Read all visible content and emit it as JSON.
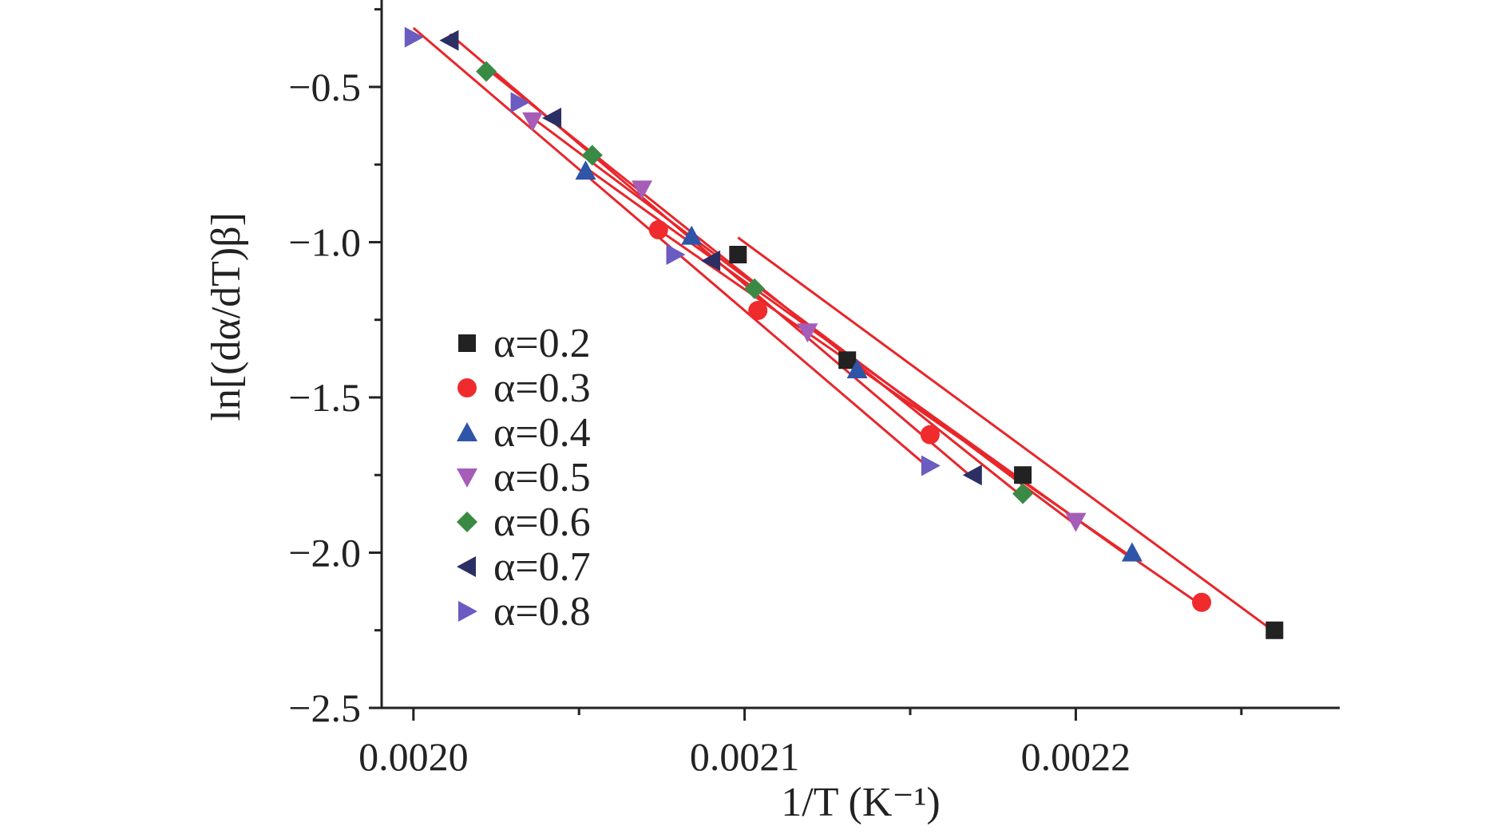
{
  "chart_data": {
    "type": "scatter",
    "xlabel": "1/T (K⁻¹)",
    "ylabel": "ln[(dα/dT)β]",
    "xlim": [
      0.0019904,
      0.0022797
    ],
    "ylim": [
      -2.5,
      -0.22
    ],
    "x_ticks": [
      0.002,
      0.0021,
      0.0022
    ],
    "x_tick_labels": [
      "0.0020",
      "0.0021",
      "0.0022"
    ],
    "y_ticks": [
      -0.5,
      -1.0,
      -1.5,
      -2.0,
      -2.5
    ],
    "y_tick_labels": [
      "−0.5",
      "−1.0",
      "−1.5",
      "−2.0",
      "−2.5"
    ],
    "grid": false,
    "legend_position": "center-left",
    "series": [
      {
        "name": "α=0.2",
        "marker": "square",
        "color": "#222222",
        "x": [
          0.002098,
          0.002131,
          0.002184,
          0.00226
        ],
        "y": [
          -1.04,
          -1.38,
          -1.75,
          -2.25
        ],
        "fit": {
          "x": [
            0.002098,
            0.00226
          ],
          "y": [
            -0.985,
            -2.255
          ]
        }
      },
      {
        "name": "α=0.3",
        "marker": "circle",
        "color": "#ef2b2d",
        "x": [
          0.002074,
          0.002104,
          0.002156,
          0.002238
        ],
        "y": [
          -0.96,
          -1.22,
          -1.62,
          -2.16
        ],
        "fit": {
          "x": [
            0.002074,
            0.002238
          ],
          "y": [
            -0.96,
            -2.17
          ]
        }
      },
      {
        "name": "α=0.4",
        "marker": "triangle-up",
        "color": "#2f55a8",
        "x": [
          0.002052,
          0.002084,
          0.002134,
          0.002217
        ],
        "y": [
          -0.77,
          -0.98,
          -1.41,
          -2.0
        ],
        "fit": {
          "x": [
            0.002052,
            0.002217
          ],
          "y": [
            -0.76,
            -2.02
          ]
        }
      },
      {
        "name": "α=0.5",
        "marker": "triangle-down",
        "color": "#a55db8",
        "x": [
          0.002036,
          0.002069,
          0.002119,
          0.0022
        ],
        "y": [
          -0.61,
          -0.83,
          -1.29,
          -1.9
        ],
        "fit": {
          "x": [
            0.002036,
            0.0022
          ],
          "y": [
            -0.6,
            -1.91
          ]
        }
      },
      {
        "name": "α=0.6",
        "marker": "diamond",
        "color": "#3a8a45",
        "x": [
          0.002022,
          0.002054,
          0.002103,
          0.002184
        ],
        "y": [
          -0.45,
          -0.72,
          -1.15,
          -1.81
        ],
        "fit": {
          "x": [
            0.002022,
            0.002184
          ],
          "y": [
            -0.44,
            -1.82
          ]
        }
      },
      {
        "name": "α=0.7",
        "marker": "triangle-left",
        "color": "#2b2f64",
        "x": [
          0.002011,
          0.002042,
          0.00209,
          0.002169
        ],
        "y": [
          -0.35,
          -0.6,
          -1.06,
          -1.75
        ],
        "fit": {
          "x": [
            0.002011,
            0.002169
          ],
          "y": [
            -0.33,
            -1.76
          ]
        }
      },
      {
        "name": "α=0.8",
        "marker": "triangle-right",
        "color": "#6a5cc0",
        "x": [
          0.002,
          0.002032,
          0.002079,
          0.002156
        ],
        "y": [
          -0.34,
          -0.55,
          -1.04,
          -1.72
        ],
        "fit": {
          "x": [
            0.002,
            0.002156
          ],
          "y": [
            -0.31,
            -1.73
          ]
        }
      }
    ],
    "fit_line_color": "#e8262a"
  }
}
